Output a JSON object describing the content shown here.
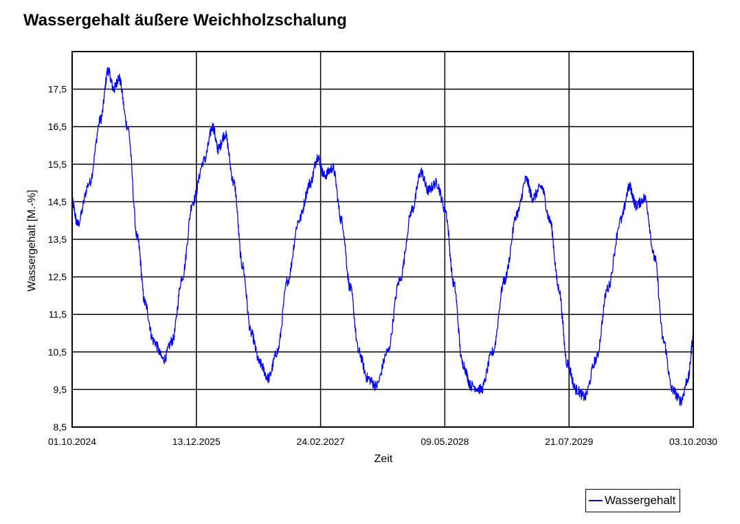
{
  "colors": {
    "series": "#0000ff",
    "grid": "#000000",
    "frame": "#000000"
  },
  "chart_data": {
    "type": "line",
    "title": "Wassergehalt äußere Weichholzschalung",
    "xlabel": "Zeit",
    "ylabel": "Wassergehalt [M.-%]",
    "xlim": [
      "2024-10-01",
      "2030-10-03"
    ],
    "ylim": [
      8.5,
      18.5
    ],
    "x_ticks": [
      "01.10.2024",
      "13.12.2025",
      "24.02.2027",
      "09.05.2028",
      "21.07.2029",
      "03.10.2030"
    ],
    "y_ticks": [
      "8,5",
      "9,5",
      "10,5",
      "11,5",
      "12,5",
      "13,5",
      "14,5",
      "15,5",
      "16,5",
      "17,5"
    ],
    "y_tick_values": [
      8.5,
      9.5,
      10.5,
      11.5,
      12.5,
      13.5,
      14.5,
      15.5,
      16.5,
      17.5
    ],
    "grid": true,
    "legend_position": "bottom-right",
    "series": [
      {
        "name": "Wassergehalt",
        "x": [
          "2024-10-01",
          "2024-10-20",
          "2024-12-01",
          "2025-01-10",
          "2025-02-05",
          "2025-02-25",
          "2025-03-15",
          "2025-04-15",
          "2025-05-20",
          "2025-06-15",
          "2025-07-15",
          "2025-08-20",
          "2025-09-20",
          "2025-10-25",
          "2025-12-01",
          "2026-01-10",
          "2026-02-10",
          "2026-02-28",
          "2026-03-25",
          "2026-04-25",
          "2026-05-25",
          "2026-06-25",
          "2026-07-25",
          "2026-08-25",
          "2026-09-25",
          "2026-11-01",
          "2026-12-10",
          "2027-01-20",
          "2027-02-15",
          "2027-03-10",
          "2027-04-10",
          "2027-05-10",
          "2027-06-10",
          "2027-07-10",
          "2027-08-10",
          "2027-09-10",
          "2027-10-20",
          "2027-12-01",
          "2028-01-15",
          "2028-02-15",
          "2028-03-10",
          "2028-04-10",
          "2028-05-10",
          "2028-06-10",
          "2028-07-10",
          "2028-08-10",
          "2028-09-15",
          "2028-10-25",
          "2028-12-05",
          "2029-01-20",
          "2029-02-20",
          "2029-03-15",
          "2029-04-15",
          "2029-05-15",
          "2029-06-15",
          "2029-07-15",
          "2029-08-15",
          "2029-09-15",
          "2029-10-25",
          "2029-12-05",
          "2030-01-20",
          "2030-02-20",
          "2030-03-15",
          "2030-04-15",
          "2030-05-20",
          "2030-06-20",
          "2030-07-20",
          "2030-08-20",
          "2030-09-15",
          "2030-10-03"
        ],
        "values": [
          14.5,
          13.9,
          15.0,
          16.7,
          18.0,
          17.5,
          17.8,
          16.5,
          13.5,
          11.8,
          10.8,
          10.3,
          10.8,
          12.5,
          14.5,
          15.6,
          16.5,
          15.9,
          16.3,
          15.0,
          12.8,
          11.0,
          10.2,
          9.8,
          10.5,
          12.4,
          14.0,
          15.0,
          15.7,
          15.2,
          15.4,
          14.0,
          12.2,
          10.5,
          9.8,
          9.6,
          10.5,
          12.4,
          14.3,
          15.3,
          14.8,
          15.0,
          14.3,
          12.3,
          10.2,
          9.6,
          9.5,
          10.5,
          12.4,
          14.2,
          15.1,
          14.6,
          14.9,
          14.0,
          12.2,
          10.2,
          9.5,
          9.3,
          10.3,
          12.2,
          14.0,
          14.9,
          14.4,
          14.6,
          13.0,
          10.8,
          9.5,
          9.2,
          9.8,
          10.9
        ]
      }
    ]
  }
}
